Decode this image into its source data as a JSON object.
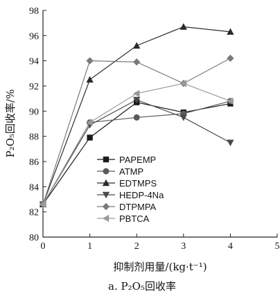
{
  "chart_data": {
    "type": "line",
    "xlabel": "抑制剂用量/(kg·t⁻¹)",
    "ylabel": "P₂O₅回收率/%",
    "caption": "a. P₂O₅回收率",
    "xlim": [
      0,
      5
    ],
    "ylim": [
      80,
      98
    ],
    "x_ticks": [
      0,
      1,
      2,
      3,
      4,
      5
    ],
    "y_ticks": [
      80,
      82,
      84,
      86,
      88,
      90,
      92,
      94,
      96,
      98
    ],
    "legend_position": "bottom-center",
    "grid": false,
    "x": [
      0,
      1,
      2,
      3,
      4
    ],
    "series": [
      {
        "name": "PAPEMP",
        "marker": "square",
        "color": "#1a1a1a",
        "values": [
          82.6,
          87.9,
          90.7,
          89.9,
          90.6
        ]
      },
      {
        "name": "ATMP",
        "marker": "circle",
        "color": "#5a5a5a",
        "values": [
          82.6,
          89.1,
          89.5,
          89.8,
          90.8
        ]
      },
      {
        "name": "EDTMPS",
        "marker": "triangle-up",
        "color": "#2b2b2b",
        "values": [
          82.6,
          92.5,
          95.2,
          96.7,
          96.3
        ]
      },
      {
        "name": "HEDP-4Na",
        "marker": "triangle-down",
        "color": "#4a4a4a",
        "values": [
          82.6,
          88.9,
          90.9,
          89.5,
          87.5
        ]
      },
      {
        "name": "DTPMPA",
        "marker": "diamond",
        "color": "#7a7a7a",
        "values": [
          82.6,
          94.0,
          93.9,
          92.2,
          94.2
        ]
      },
      {
        "name": "PBTCA",
        "marker": "triangle-left",
        "color": "#9a9a9a",
        "values": [
          82.6,
          89.1,
          91.4,
          92.2,
          90.8
        ]
      }
    ]
  }
}
